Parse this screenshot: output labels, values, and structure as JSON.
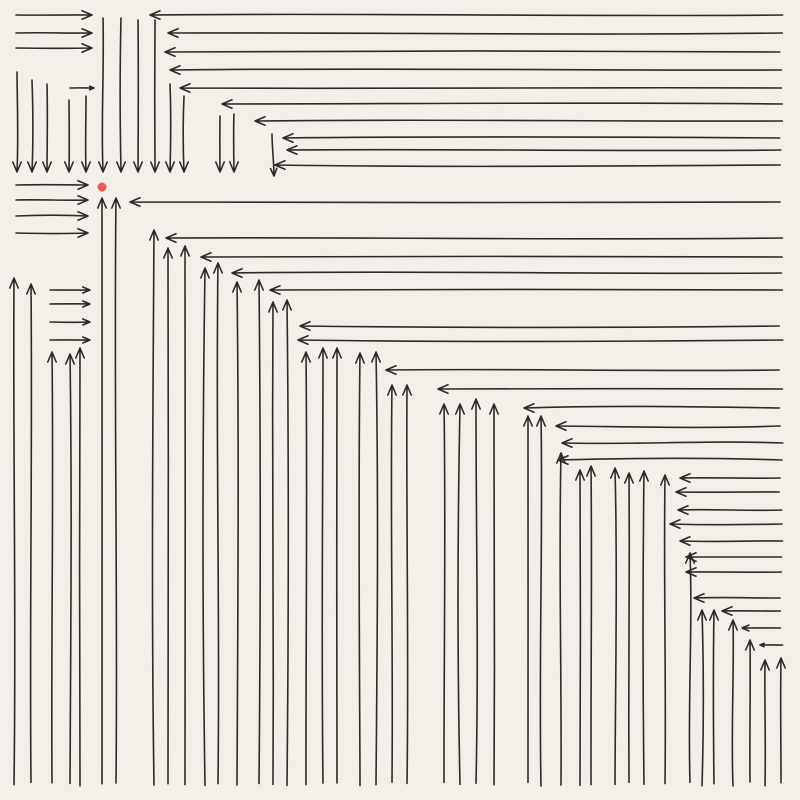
{
  "diagram": {
    "type": "vector-field-arrows",
    "style": "hand-drawn",
    "colors": {
      "paper": "#f4f1ea",
      "ink": "#2b2b2b",
      "target_point": "#f05a5a"
    },
    "target": {
      "label": ""
    }
  }
}
